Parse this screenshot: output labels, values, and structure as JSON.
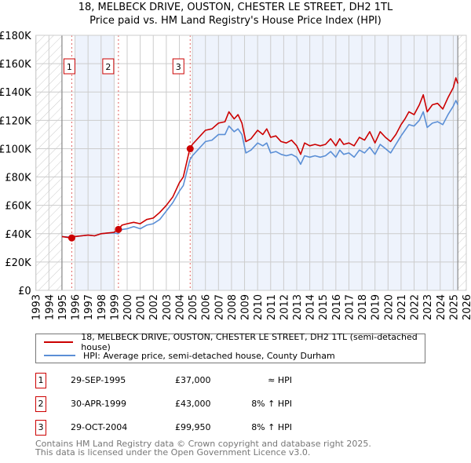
{
  "title": "18, MELBECK DRIVE, OUSTON, CHESTER LE STREET, DH2 1TL",
  "subtitle": "Price paid vs. HM Land Registry's House Price Index (HPI)",
  "colors": {
    "price": "#cc0000",
    "hpi": "#5b8fd6",
    "shade": "#eef3fc",
    "grid": "#cccccc"
  },
  "chart_data": {
    "type": "line",
    "xlim": [
      1993,
      2026
    ],
    "ylim": [
      0,
      180000
    ],
    "yticks": [
      "£0",
      "£20K",
      "£40K",
      "£60K",
      "£80K",
      "£100K",
      "£120K",
      "£140K",
      "£160K",
      "£180K"
    ],
    "xticks": [
      "1993",
      "1994",
      "1995",
      "1996",
      "1997",
      "1998",
      "1999",
      "2000",
      "2001",
      "2002",
      "2003",
      "2004",
      "2005",
      "2006",
      "2007",
      "2008",
      "2009",
      "2010",
      "2011",
      "2012",
      "2013",
      "2014",
      "2015",
      "2016",
      "2017",
      "2018",
      "2019",
      "2020",
      "2021",
      "2022",
      "2023",
      "2024",
      "2025",
      "2026"
    ],
    "series": [
      {
        "name": "18, MELBECK DRIVE, OUSTON, CHESTER LE STREET, DH2 1TL (semi-detached house)",
        "x": [
          1995,
          1995.7,
          1996,
          1996.5,
          1997,
          1997.5,
          1998,
          1998.5,
          1999,
          1999.3,
          1999.6,
          2000,
          2000.5,
          2001,
          2001.5,
          2002,
          2002.5,
          2003,
          2003.5,
          2004,
          2004.3,
          2004.8,
          2005,
          2005.5,
          2006,
          2006.5,
          2007,
          2007.5,
          2007.8,
          2008.2,
          2008.5,
          2008.8,
          2009.1,
          2009.5,
          2010,
          2010.4,
          2010.7,
          2011,
          2011.4,
          2011.8,
          2012.2,
          2012.6,
          2013,
          2013.3,
          2013.6,
          2014,
          2014.4,
          2014.8,
          2015.2,
          2015.6,
          2016,
          2016.3,
          2016.6,
          2017,
          2017.4,
          2017.8,
          2018.2,
          2018.6,
          2019,
          2019.4,
          2019.8,
          2020.2,
          2020.6,
          2021,
          2021.3,
          2021.6,
          2022,
          2022.4,
          2022.7,
          2023,
          2023.4,
          2023.8,
          2024.2,
          2024.6,
          2025,
          2025.2,
          2025.35
        ],
        "y": [
          38000,
          37000,
          38000,
          38500,
          39000,
          38500,
          40000,
          40500,
          41000,
          43000,
          46000,
          47000,
          48000,
          47000,
          50000,
          51000,
          55000,
          60000,
          66000,
          76000,
          80000,
          99950,
          103000,
          108000,
          113000,
          114000,
          118000,
          119000,
          126000,
          121000,
          124000,
          118000,
          105000,
          107000,
          113000,
          110000,
          114000,
          108000,
          109000,
          105000,
          104000,
          106000,
          102000,
          96000,
          104000,
          102000,
          103000,
          102000,
          103000,
          107000,
          102000,
          107000,
          103000,
          104000,
          102000,
          108000,
          106000,
          112000,
          104000,
          112000,
          108000,
          105000,
          110000,
          117000,
          121000,
          126000,
          124000,
          131000,
          138000,
          126000,
          131000,
          132000,
          128000,
          136000,
          143000,
          150000,
          146000
        ]
      },
      {
        "name": "HPI: Average price, semi-detached house, County Durham",
        "x": [
          1995,
          1995.7,
          1996,
          1996.5,
          1997,
          1997.5,
          1998,
          1998.5,
          1999,
          1999.3,
          1999.6,
          2000,
          2000.5,
          2001,
          2001.5,
          2002,
          2002.5,
          2003,
          2003.5,
          2004,
          2004.3,
          2004.8,
          2005,
          2005.5,
          2006,
          2006.5,
          2007,
          2007.5,
          2007.8,
          2008.2,
          2008.5,
          2008.8,
          2009.1,
          2009.5,
          2010,
          2010.4,
          2010.7,
          2011,
          2011.4,
          2011.8,
          2012.2,
          2012.6,
          2013,
          2013.3,
          2013.6,
          2014,
          2014.4,
          2014.8,
          2015.2,
          2015.6,
          2016,
          2016.3,
          2016.6,
          2017,
          2017.4,
          2017.8,
          2018.2,
          2018.6,
          2019,
          2019.4,
          2019.8,
          2020.2,
          2020.6,
          2021,
          2021.3,
          2021.6,
          2022,
          2022.4,
          2022.7,
          2023,
          2023.4,
          2023.8,
          2024.2,
          2024.6,
          2025,
          2025.2,
          2025.35
        ],
        "y": [
          38000,
          37500,
          38000,
          38500,
          39000,
          38500,
          40000,
          40500,
          40500,
          40000,
          43000,
          43500,
          45000,
          43500,
          46000,
          47000,
          50000,
          56000,
          62000,
          70000,
          74000,
          92000,
          95000,
          100000,
          105000,
          106000,
          110000,
          110000,
          116000,
          112000,
          114000,
          110000,
          97000,
          99000,
          104000,
          102000,
          104000,
          97000,
          98000,
          96000,
          95000,
          96000,
          94000,
          89000,
          95000,
          94000,
          95000,
          94000,
          95000,
          98000,
          94000,
          99000,
          96000,
          97000,
          94000,
          99000,
          97000,
          101000,
          96000,
          103000,
          100000,
          97000,
          103000,
          109000,
          113000,
          117000,
          116000,
          120000,
          126000,
          115000,
          118000,
          119000,
          117000,
          124000,
          130000,
          134000,
          131000
        ]
      }
    ],
    "sales": [
      {
        "n": "1",
        "x": 1995.75,
        "y": 37000
      },
      {
        "n": "2",
        "x": 1999.33,
        "y": 43000
      },
      {
        "n": "3",
        "x": 2004.83,
        "y": 99950
      }
    ],
    "grid": true
  },
  "legend": {
    "price": "18, MELBECK DRIVE, OUSTON, CHESTER LE STREET, DH2 1TL (semi-detached house)",
    "hpi": "HPI: Average price, semi-detached house, County Durham"
  },
  "transactions": [
    {
      "n": "1",
      "date": "29-SEP-1995",
      "price": "£37,000",
      "hpi": "≈ HPI"
    },
    {
      "n": "2",
      "date": "30-APR-1999",
      "price": "£43,000",
      "hpi": "8% ↑ HPI"
    },
    {
      "n": "3",
      "date": "29-OCT-2004",
      "price": "£99,950",
      "hpi": "8% ↑ HPI"
    }
  ],
  "footer": [
    "Contains HM Land Registry data © Crown copyright and database right 2025.",
    "This data is licensed under the Open Government Licence v3.0."
  ]
}
